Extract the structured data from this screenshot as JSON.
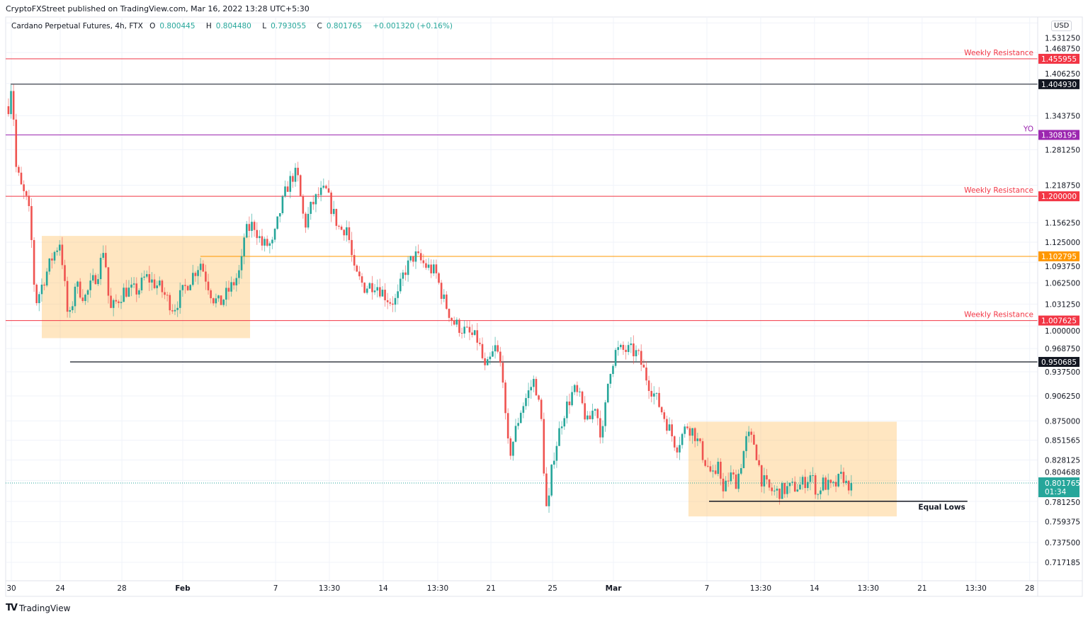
{
  "header": {
    "published": "CryptoFXStreet published on TradingView.com, Mar 16, 2022 13:28 UTC+5:30",
    "symbol": "Cardano Perpetual Futures, 4h, FTX",
    "o_label": "O",
    "o_value": "0.800445",
    "h_label": "H",
    "h_value": "0.804480",
    "l_label": "L",
    "l_value": "0.793055",
    "c_label": "C",
    "c_value": "0.801765",
    "change": "+0.001320 (+0.16%)"
  },
  "footer": {
    "brand": "TradingView",
    "logo_mark": "TV"
  },
  "axis": {
    "currency": "USD"
  },
  "colors": {
    "up": "#26a69a",
    "down": "#ef5350",
    "resistance": "#f23645",
    "yo": "#9c27b0",
    "orange": "#ff9800",
    "black": "#131722",
    "box": "#ffb74d"
  },
  "chart_data": {
    "type": "candlestick",
    "title": "Cardano Perpetual Futures, 4h, FTX",
    "scale": "log",
    "candles_per_day": 6,
    "time_unit": "days since Feb 1 2022",
    "ylim": [
      0.7,
      1.545
    ],
    "xlim": [
      -11.6,
      55.6
    ],
    "y_ticks": [
      "1.531250",
      "1.468750",
      "1.406250",
      "1.343750",
      "1.281250",
      "1.218750",
      "1.156250",
      "1.125000",
      "1.093750",
      "1.062500",
      "1.031250",
      "1.000000",
      "0.968750",
      "0.937500",
      "0.906250",
      "0.875000",
      "0.851565",
      "0.828125",
      "0.804688",
      "0.781250",
      "0.759375",
      "0.737500",
      "0.717185"
    ],
    "x_ticks": [
      {
        "t": -11.15,
        "label": "30",
        "bold": false
      },
      {
        "t": -7.97,
        "label": "24",
        "bold": false
      },
      {
        "t": -3.96,
        "label": "28",
        "bold": false
      },
      {
        "t": 0,
        "label": "Feb",
        "bold": true
      },
      {
        "t": 6.04,
        "label": "7",
        "bold": false
      },
      {
        "t": 9.54,
        "label": "13:30",
        "bold": false
      },
      {
        "t": 13.04,
        "label": "14",
        "bold": false
      },
      {
        "t": 16.59,
        "label": "13:30",
        "bold": false
      },
      {
        "t": 20.05,
        "label": "21",
        "bold": false
      },
      {
        "t": 24.06,
        "label": "25",
        "bold": false
      },
      {
        "t": 28.02,
        "label": "Mar",
        "bold": true
      },
      {
        "t": 34.1,
        "label": "7",
        "bold": false
      },
      {
        "t": 37.6,
        "label": "13:30",
        "bold": false
      },
      {
        "t": 41.1,
        "label": "14",
        "bold": false
      },
      {
        "t": 44.6,
        "label": "13:30",
        "bold": false
      },
      {
        "t": 48.1,
        "label": "21",
        "bold": false
      },
      {
        "t": 51.6,
        "label": "13:30",
        "bold": false
      },
      {
        "t": 55.1,
        "label": "28",
        "bold": false
      }
    ],
    "close_path": [
      [
        -11.34,
        1.362
      ],
      [
        -11.24,
        1.403
      ],
      [
        -11.06,
        1.396
      ],
      [
        -10.92,
        1.258
      ],
      [
        -10.51,
        1.215
      ],
      [
        -10.05,
        1.185
      ],
      [
        -9.82,
        1.121
      ],
      [
        -9.59,
        1.031
      ],
      [
        -9.12,
        1.062
      ],
      [
        -8.43,
        1.105
      ],
      [
        -7.97,
        1.127
      ],
      [
        -7.51,
        1.02
      ],
      [
        -7.28,
        1.01
      ],
      [
        -7.05,
        1.062
      ],
      [
        -6.36,
        1.041
      ],
      [
        -5.44,
        1.083
      ],
      [
        -5.12,
        1.121
      ],
      [
        -4.75,
        1.02
      ],
      [
        -3.82,
        1.051
      ],
      [
        -2.9,
        1.051
      ],
      [
        -2.44,
        1.072
      ],
      [
        -1.52,
        1.056
      ],
      [
        -0.6,
        1.025
      ],
      [
        0.32,
        1.062
      ],
      [
        1.15,
        1.094
      ],
      [
        1.94,
        1.041
      ],
      [
        2.4,
        1.031
      ],
      [
        3.32,
        1.062
      ],
      [
        3.78,
        1.083
      ],
      [
        4.01,
        1.138
      ],
      [
        4.61,
        1.155
      ],
      [
        5.16,
        1.121
      ],
      [
        5.85,
        1.121
      ],
      [
        6.31,
        1.173
      ],
      [
        6.77,
        1.215
      ],
      [
        7.24,
        1.239
      ],
      [
        7.47,
        1.233
      ],
      [
        7.93,
        1.15
      ],
      [
        8.39,
        1.185
      ],
      [
        8.85,
        1.203
      ],
      [
        9.31,
        1.209
      ],
      [
        9.77,
        1.173
      ],
      [
        10.23,
        1.144
      ],
      [
        10.69,
        1.15
      ],
      [
        11.15,
        1.078
      ],
      [
        11.84,
        1.056
      ],
      [
        12.53,
        1.062
      ],
      [
        13.46,
        1.036
      ],
      [
        13.92,
        1.036
      ],
      [
        14.38,
        1.078
      ],
      [
        15.07,
        1.105
      ],
      [
        15.76,
        1.089
      ],
      [
        16.45,
        1.078
      ],
      [
        16.91,
        1.041
      ],
      [
        17.6,
        1.005
      ],
      [
        18.53,
        0.99
      ],
      [
        19.22,
        0.98
      ],
      [
        19.68,
        0.938
      ],
      [
        20.37,
        0.971
      ],
      [
        20.83,
        0.933
      ],
      [
        21.06,
        0.853
      ],
      [
        21.29,
        0.836
      ],
      [
        21.98,
        0.888
      ],
      [
        22.67,
        0.919
      ],
      [
        22.9,
        0.928
      ],
      [
        23.36,
        0.87
      ],
      [
        23.59,
        0.784
      ],
      [
        23.73,
        0.764
      ],
      [
        24.06,
        0.828
      ],
      [
        24.75,
        0.883
      ],
      [
        25.44,
        0.914
      ],
      [
        25.9,
        0.9
      ],
      [
        26.36,
        0.87
      ],
      [
        26.82,
        0.896
      ],
      [
        27.28,
        0.853
      ],
      [
        27.74,
        0.938
      ],
      [
        28.2,
        0.966
      ],
      [
        29.12,
        0.966
      ],
      [
        29.59,
        0.961
      ],
      [
        30.28,
        0.924
      ],
      [
        30.97,
        0.896
      ],
      [
        31.66,
        0.865
      ],
      [
        32.12,
        0.844
      ],
      [
        32.81,
        0.87
      ],
      [
        33.27,
        0.861
      ],
      [
        33.96,
        0.828
      ],
      [
        34.65,
        0.803
      ],
      [
        34.88,
        0.836
      ],
      [
        35.12,
        0.788
      ],
      [
        35.58,
        0.811
      ],
      [
        36.04,
        0.803
      ],
      [
        36.73,
        0.857
      ],
      [
        37.19,
        0.848
      ],
      [
        37.65,
        0.807
      ],
      [
        38.11,
        0.795
      ],
      [
        38.57,
        0.791
      ],
      [
        39.26,
        0.795
      ],
      [
        40.18,
        0.799
      ],
      [
        40.87,
        0.811
      ],
      [
        41.34,
        0.788
      ],
      [
        41.57,
        0.803
      ],
      [
        42.26,
        0.795
      ],
      [
        42.95,
        0.811
      ],
      [
        43.18,
        0.799
      ],
      [
        43.41,
        0.801765
      ]
    ],
    "levels": [
      {
        "price": 1.455955,
        "label": "1.455955",
        "color": "#f23645",
        "note": "Weekly Resistance",
        "from": -11.6,
        "width": 1
      },
      {
        "price": 1.40493,
        "label": "1.404930",
        "color": "#131722",
        "note": "",
        "from": -11.2,
        "width": 1
      },
      {
        "price": 1.308195,
        "label": "1.308195",
        "color": "#9c27b0",
        "note": "YO",
        "from": -11.6,
        "width": 1
      },
      {
        "price": 1.2,
        "label": "1.200000",
        "color": "#f23645",
        "note": "Weekly Resistance",
        "from": -11.6,
        "width": 1
      },
      {
        "price": 1.102795,
        "label": "1.102795",
        "color": "#ff9800",
        "note": "",
        "from": 1.15,
        "width": 1
      },
      {
        "price": 1.007625,
        "label": "1.007625",
        "color": "#f23645",
        "note": "Weekly Resistance",
        "from": -11.6,
        "width": 1
      },
      {
        "price": 0.950685,
        "label": "0.950685",
        "color": "#131722",
        "note": "",
        "from": -7.33,
        "width": 1.3
      }
    ],
    "current_price": {
      "price": 0.801765,
      "label": "0.801765",
      "countdown": "01:34",
      "color": "#26a69a"
    },
    "zones": [
      {
        "t0": -9.17,
        "t1": 4.38,
        "p_top": 1.135,
        "p_bottom": 0.983
      },
      {
        "t0": 32.9,
        "t1": 46.45,
        "p_top": 0.874,
        "p_bottom": 0.765
      }
    ],
    "equal_lows": {
      "t0": 34.24,
      "t1": 51.05,
      "price": 0.7815,
      "label": "Equal Lows"
    }
  }
}
